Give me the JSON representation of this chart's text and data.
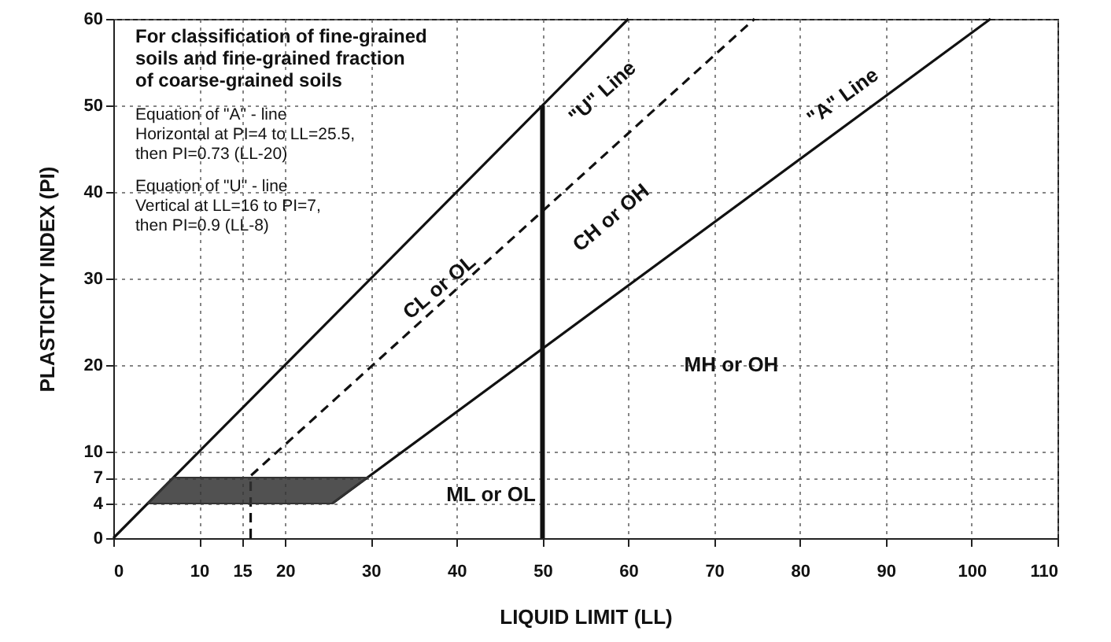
{
  "chart_data": {
    "type": "line",
    "xlabel": "LIQUID LIMIT (LL)",
    "ylabel": "PLASTICITY INDEX (PI)",
    "xlim": [
      0,
      110
    ],
    "xticks": [
      0,
      10,
      15,
      20,
      30,
      40,
      50,
      60,
      70,
      80,
      90,
      100,
      110
    ],
    "ylim": [
      0,
      60
    ],
    "yticks": [
      0,
      4,
      7,
      10,
      20,
      30,
      40,
      50,
      60
    ],
    "grid": true,
    "series": [
      {
        "color": "#111111",
        "x": [
          0,
          60
        ],
        "values": [
          0,
          60
        ]
      },
      {
        "color": "#111111",
        "line_style": "dashed",
        "x": [
          16,
          16,
          74.7
        ],
        "values": [
          0,
          7.2,
          60
        ]
      },
      {
        "color": "#111111",
        "x": [
          25.5,
          102.2
        ],
        "values": [
          4,
          60
        ]
      },
      {
        "color": "#111111",
        "x": [
          50,
          50
        ],
        "values": [
          0,
          50
        ]
      },
      {
        "type": "area",
        "color": "#333333",
        "x": [
          4,
          7,
          29.6,
          25.5,
          4
        ],
        "values": [
          4,
          7,
          7,
          4,
          4
        ]
      }
    ],
    "annotations": [
      "For classification of fine-grained\nsoils and fine-grained fraction\nof coarse-grained soils",
      "Equation of \"A\" - line\nHorizontal at PI=4 to LL=25.5,\n  then PI=0.73 (LL-20)",
      "Equation of \"U\" - line\nVertical at LL=16 to PI=7,\n  then PI=0.9 (LL-8)",
      "\"U\" Line",
      "\"A\" Line",
      "CL or OL",
      "CH or OH",
      "MH or OH",
      "ML or OL"
    ]
  }
}
